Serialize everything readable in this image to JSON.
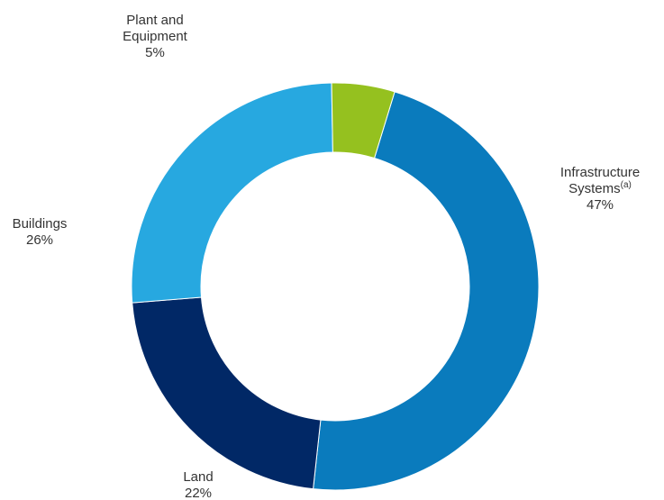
{
  "chart_data": {
    "type": "pie",
    "style": "donut",
    "title": "",
    "slices": [
      {
        "label_lines": [
          "Infrastructure",
          "Systems"
        ],
        "superscript": "(a)",
        "value": 47,
        "value_text": "47%",
        "color": "#0a7bbd"
      },
      {
        "label_lines": [
          "Land"
        ],
        "superscript": "",
        "value": 22,
        "value_text": "22%",
        "color": "#012866"
      },
      {
        "label_lines": [
          "Buildings"
        ],
        "superscript": "",
        "value": 26,
        "value_text": "26%",
        "color": "#27a8e0"
      },
      {
        "label_lines": [
          "Plant and",
          "Equipment"
        ],
        "superscript": "",
        "value": 5,
        "value_text": "5%",
        "color": "#95c11f"
      }
    ],
    "legend": "none"
  }
}
